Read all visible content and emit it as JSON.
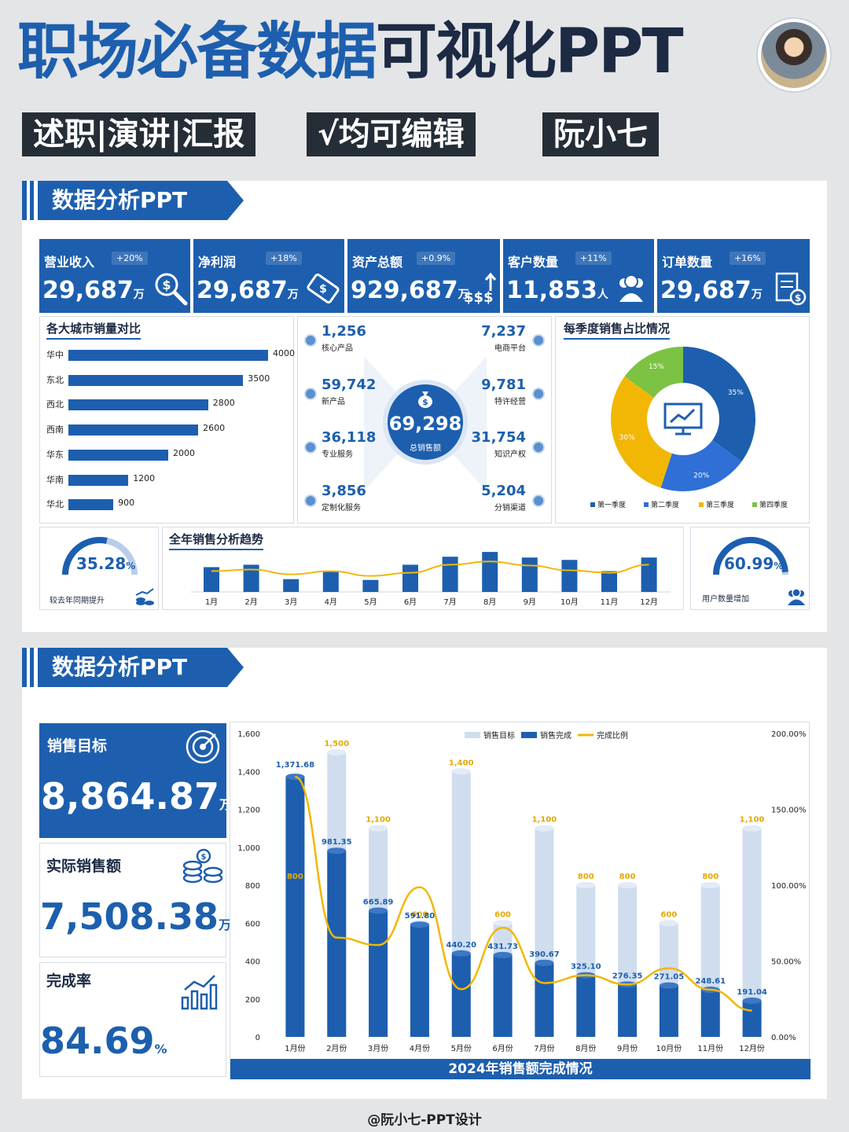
{
  "header": {
    "title_blue": "职场必备数据",
    "title_dark": "可视化PPT",
    "tags": [
      "述职|演讲|汇报",
      "√均可编辑",
      "阮小七"
    ]
  },
  "section1": {
    "label": "数据分析PPT"
  },
  "kpis": [
    {
      "label": "营业收入",
      "pct": "+20%",
      "value": "29,687",
      "unit": "万",
      "icon": "money-search-icon"
    },
    {
      "label": "净利润",
      "pct": "+18%",
      "value": "29,687",
      "unit": "万",
      "icon": "banknote-icon"
    },
    {
      "label": "资产总额",
      "pct": "+0.9%",
      "value": "929,687",
      "unit": "万",
      "icon": "money-growth-icon"
    },
    {
      "label": "客户数量",
      "pct": "+11%",
      "value": "11,853",
      "unit": "人",
      "icon": "users-icon"
    },
    {
      "label": "订单数量",
      "pct": "+16%",
      "value": "29,687",
      "unit": "万",
      "icon": "invoice-icon"
    }
  ],
  "city": {
    "title": "各大城市销量对比"
  },
  "center": {
    "total_value": "69,298",
    "total_label": "总销售额",
    "left": [
      {
        "v": "1,256",
        "l": "核心产品"
      },
      {
        "v": "59,742",
        "l": "新产品"
      },
      {
        "v": "36,118",
        "l": "专业服务"
      },
      {
        "v": "3,856",
        "l": "定制化服务"
      }
    ],
    "right": [
      {
        "v": "7,237",
        "l": "电商平台"
      },
      {
        "v": "9,781",
        "l": "特许经营"
      },
      {
        "v": "31,754",
        "l": "知识产权"
      },
      {
        "v": "5,204",
        "l": "分销渠道"
      }
    ]
  },
  "quarter": {
    "title": "每季度销售占比情况"
  },
  "gauge1": {
    "value": "35.28",
    "unit": "%",
    "label": "较去年同期提升",
    "fraction": 0.3528
  },
  "gauge2": {
    "value": "60.99",
    "unit": "%",
    "label": "用户数量增加",
    "fraction": 0.6099
  },
  "trend": {
    "title": "全年销售分析趋势"
  },
  "section2": {
    "label": "数据分析PPT"
  },
  "stats": [
    {
      "label": "销售目标",
      "value": "8,864.87",
      "unit": "万",
      "icon": "target-icon"
    },
    {
      "label": "实际销售额",
      "value": "7,508.38",
      "unit": "万",
      "icon": "coins-icon"
    },
    {
      "label": "完成率",
      "value": "84.69",
      "unit": "%",
      "icon": "bar-chart-icon"
    }
  ],
  "footer": {
    "credit": "@阮小七-PPT设计"
  },
  "chart_data": [
    {
      "type": "bar",
      "orientation": "horizontal",
      "title": "各大城市销量对比",
      "categories": [
        "华中",
        "东北",
        "西北",
        "西南",
        "华东",
        "华南",
        "华北"
      ],
      "values": [
        4000,
        3500,
        2800,
        2600,
        2000,
        1200,
        900
      ]
    },
    {
      "type": "pie",
      "title": "每季度销售占比情况",
      "categories": [
        "第一季度",
        "第二季度",
        "第三季度",
        "第四季度"
      ],
      "values": [
        35,
        20,
        30,
        15
      ],
      "value_labels": [
        "35%",
        "20%",
        "30%",
        "15%"
      ],
      "colors": [
        "#1d5fae",
        "#2f6fd6",
        "#f2b705",
        "#7cc243"
      ],
      "legend": "bottom"
    },
    {
      "type": "bar",
      "title": "全年销售分析趋势",
      "categories": [
        "1月",
        "2月",
        "3月",
        "4月",
        "5月",
        "6月",
        "7月",
        "8月",
        "9月",
        "10月",
        "11月",
        "12月"
      ],
      "values": [
        62,
        68,
        32,
        52,
        30,
        68,
        88,
        100,
        86,
        80,
        52,
        86
      ],
      "line": [
        52,
        56,
        44,
        52,
        40,
        48,
        68,
        76,
        66,
        54,
        48,
        68
      ],
      "ylim": [
        0,
        110
      ]
    },
    {
      "type": "bar",
      "title": "2024年销售额完成情况",
      "categories": [
        "1月份",
        "2月份",
        "3月份",
        "4月份",
        "5月份",
        "6月份",
        "7月份",
        "8月份",
        "9月份",
        "10月份",
        "11月份",
        "12月份"
      ],
      "series": [
        {
          "name": "销售目标",
          "values": [
            800,
            1500,
            1100,
            600,
            1400,
            600,
            1100,
            800,
            800,
            600,
            800,
            1100
          ],
          "labels": [
            "800",
            "1,500",
            "1,100",
            "600",
            "1,400",
            "600",
            "1,100",
            "800",
            "800",
            "600",
            "800",
            "1,100"
          ],
          "color": "#cfddef"
        },
        {
          "name": "销售完成",
          "values": [
            1371.68,
            981.35,
            665.89,
            591.8,
            440.2,
            431.73,
            390.67,
            325.1,
            276.35,
            271.05,
            248.61,
            191.04
          ],
          "labels": [
            "1,371.68",
            "981.35",
            "665.89",
            "591.80",
            "440.20",
            "431.73",
            "390.67",
            "325.10",
            "276.35",
            "271.05",
            "248.61",
            "191.04"
          ],
          "color": "#1d5fae"
        },
        {
          "name": "完成比例",
          "type": "line",
          "axis": "right",
          "values": [
            171.46,
            65.42,
            60.54,
            98.63,
            31.44,
            71.96,
            35.52,
            40.64,
            34.54,
            45.18,
            31.08,
            17.37
          ],
          "color": "#f2b705"
        }
      ],
      "ylim": [
        0,
        1600
      ],
      "yticks": [
        0,
        200,
        400,
        600,
        800,
        1000,
        1200,
        1400,
        1600
      ],
      "ytick_labels": [
        "0",
        "200",
        "400",
        "600",
        "800",
        "1,000",
        "1,200",
        "1,400",
        "1,600"
      ],
      "y2lim": [
        0,
        200
      ],
      "y2ticks": [
        "0.00%",
        "50.00%",
        "100.00%",
        "150.00%",
        "200.00%"
      ],
      "legend": "top"
    }
  ]
}
